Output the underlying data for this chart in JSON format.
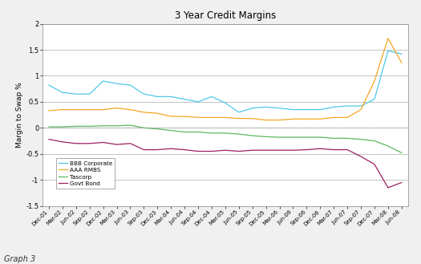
{
  "title": "3 Year Credit Margins",
  "ylabel": "Margin to Swap %",
  "footnote": "Graph 3",
  "ylim": [
    -1.5,
    2.0
  ],
  "yticks": [
    -1.5,
    -1.0,
    -0.5,
    0.0,
    0.5,
    1.0,
    1.5,
    2.0
  ],
  "x_labels": [
    "Dec-01",
    "Mar-02",
    "Jun-02",
    "Sep-02",
    "Dec-02",
    "Mar-03",
    "Jun-03",
    "Sep-03",
    "Dec-03",
    "Mar-04",
    "Jun-04",
    "Sep-04",
    "Dec-04",
    "Mar-05",
    "Jun-05",
    "Sep-05",
    "Dec-05",
    "Mar-06",
    "Jun-06",
    "Sep-06",
    "Dec-06",
    "Mar-07",
    "Jun-07",
    "Sep-07",
    "Dec-07",
    "Mar-08",
    "Jun-08"
  ],
  "series": {
    "BBB Corporate": {
      "color": "#4EC8E8",
      "values": [
        0.82,
        0.68,
        0.65,
        0.65,
        0.9,
        0.85,
        0.82,
        0.65,
        0.6,
        0.6,
        0.55,
        0.5,
        0.6,
        0.48,
        0.3,
        0.38,
        0.4,
        0.38,
        0.35,
        0.35,
        0.35,
        0.4,
        0.42,
        0.42,
        0.55,
        1.48,
        1.42
      ]
    },
    "AAA RMBS": {
      "color": "#F5A623",
      "values": [
        0.33,
        0.35,
        0.35,
        0.35,
        0.35,
        0.38,
        0.35,
        0.3,
        0.28,
        0.22,
        0.22,
        0.2,
        0.2,
        0.2,
        0.18,
        0.18,
        0.15,
        0.15,
        0.17,
        0.17,
        0.17,
        0.2,
        0.2,
        0.35,
        0.9,
        1.72,
        1.25
      ]
    },
    "Tascorp": {
      "color": "#5DB85D",
      "values": [
        0.02,
        0.02,
        0.03,
        0.03,
        0.04,
        0.04,
        0.05,
        0.0,
        -0.02,
        -0.05,
        -0.08,
        -0.08,
        -0.1,
        -0.1,
        -0.12,
        -0.15,
        -0.17,
        -0.18,
        -0.18,
        -0.18,
        -0.18,
        -0.2,
        -0.2,
        -0.22,
        -0.25,
        -0.35,
        -0.48
      ]
    },
    "Govt Bond": {
      "color": "#9B2060",
      "values": [
        -0.22,
        -0.27,
        -0.3,
        -0.3,
        -0.28,
        -0.32,
        -0.3,
        -0.42,
        -0.42,
        -0.4,
        -0.42,
        -0.45,
        -0.45,
        -0.43,
        -0.45,
        -0.43,
        -0.43,
        -0.43,
        -0.43,
        -0.42,
        -0.4,
        -0.42,
        -0.42,
        -0.55,
        -0.7,
        -1.15,
        -1.05
      ]
    }
  },
  "legend_order": [
    "BBB Corporate",
    "AAA RMBS",
    "Tascorp",
    "Govt Bond"
  ],
  "background_color": "#F0F0F0",
  "plot_bg_color": "#FFFFFF",
  "grid_color": "#AAAAAA"
}
